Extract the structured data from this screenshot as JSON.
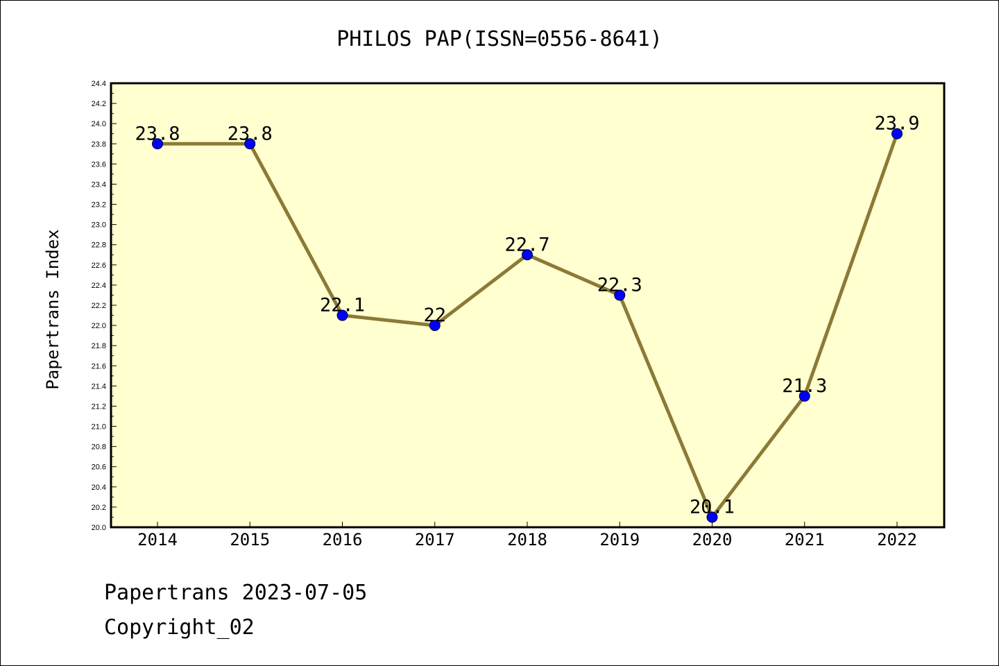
{
  "chart_data": {
    "type": "line",
    "title": "PHILOS PAP(ISSN=0556-8641)",
    "ylabel": "Papertrans Index",
    "xlabel": "",
    "categories": [
      "2014",
      "2015",
      "2016",
      "2017",
      "2018",
      "2019",
      "2020",
      "2021",
      "2022"
    ],
    "values": [
      23.8,
      23.8,
      22.1,
      22.0,
      22.7,
      22.3,
      20.1,
      21.3,
      23.9
    ],
    "data_labels": [
      "23.8",
      "23.8",
      "22.1",
      "22",
      "22.7",
      "22.3",
      "20.1",
      "21.3",
      "23.9"
    ],
    "ylim": [
      20.0,
      24.4
    ],
    "yticks": [
      "20.0",
      "20.2",
      "20.4",
      "20.6",
      "20.8",
      "21.0",
      "21.2",
      "21.4",
      "21.6",
      "21.8",
      "22.0",
      "22.2",
      "22.4",
      "22.6",
      "22.8",
      "23.0",
      "23.2",
      "23.4",
      "23.6",
      "23.8",
      "24.0",
      "24.2",
      "24.4"
    ],
    "grid": false,
    "colors": {
      "plot_background": "#ffffd0",
      "line": "#8b7a36",
      "marker": "#0000ff"
    }
  },
  "footer": {
    "date_line": "Papertrans 2023-07-05",
    "copyright": "Copyright_02"
  }
}
